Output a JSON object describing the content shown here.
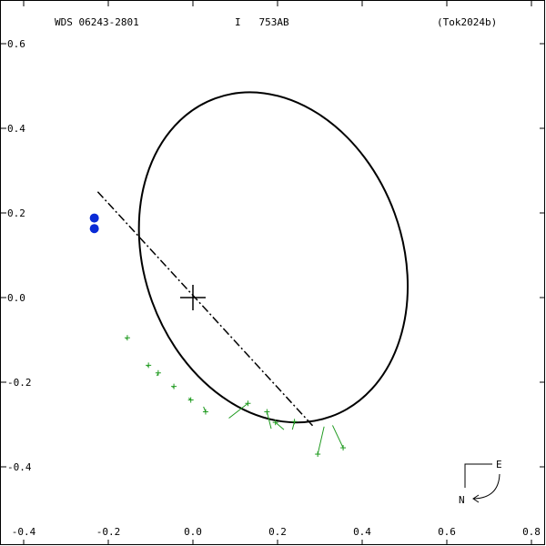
{
  "header": {
    "left": "WDS 06243-2801",
    "middle": "I   753AB",
    "right": "(Tok2024b)"
  },
  "compass": {
    "east": "E",
    "north": "N"
  },
  "chart_data": {
    "type": "scatter",
    "title": "",
    "xlabel": "",
    "ylabel": "",
    "xlim": [
      -0.4,
      0.8
    ],
    "ylim": [
      -0.5,
      0.6
    ],
    "x_ticks": [
      -0.4,
      -0.2,
      0.0,
      0.2,
      0.4,
      0.6,
      0.8
    ],
    "y_ticks": [
      0.6,
      0.4,
      0.2,
      0.0,
      -0.2,
      -0.4
    ],
    "x_tick_labels": [
      "-0.4",
      "-0.2",
      "0.0",
      "0.2",
      "0.4",
      "0.6",
      "0.8"
    ],
    "y_tick_labels": [
      "0.6",
      "0.4",
      "0.2",
      "0.0",
      "-0.2",
      "-0.4"
    ],
    "grid": false,
    "primary_star": {
      "x": 0.0,
      "y": 0.0
    },
    "orbit_ellipse": {
      "center": [
        0.19,
        0.095
      ],
      "semi_axes": [
        0.305,
        0.4
      ],
      "rotation_deg": -20
    },
    "line_of_nodes": {
      "from": [
        -0.225,
        0.25
      ],
      "to": [
        0.285,
        -0.305
      ]
    },
    "predicted_positions": [
      {
        "x": -0.233,
        "y": 0.188
      },
      {
        "x": -0.233,
        "y": 0.163
      }
    ],
    "observations": [
      {
        "x": -0.155,
        "y": -0.095,
        "fit_x": -0.158,
        "fit_y": -0.098
      },
      {
        "x": -0.105,
        "y": -0.16,
        "fit_x": -0.108,
        "fit_y": -0.163
      },
      {
        "x": -0.082,
        "y": -0.178,
        "fit_x": -0.085,
        "fit_y": -0.185
      },
      {
        "x": -0.045,
        "y": -0.21,
        "fit_x": -0.048,
        "fit_y": -0.213
      },
      {
        "x": -0.005,
        "y": -0.242,
        "fit_x": -0.01,
        "fit_y": -0.237
      },
      {
        "x": 0.03,
        "y": -0.27,
        "fit_x": 0.025,
        "fit_y": -0.258
      },
      {
        "x": 0.13,
        "y": -0.25,
        "fit_x": 0.085,
        "fit_y": -0.285
      },
      {
        "x": 0.175,
        "y": -0.27,
        "fit_x": 0.185,
        "fit_y": -0.31
      },
      {
        "x": 0.195,
        "y": -0.295,
        "fit_x": 0.215,
        "fit_y": -0.312
      },
      {
        "x": 0.24,
        "y": -0.293,
        "fit_x": 0.235,
        "fit_y": -0.312
      },
      {
        "x": 0.295,
        "y": -0.37,
        "fit_x": 0.31,
        "fit_y": -0.305
      },
      {
        "x": 0.355,
        "y": -0.355,
        "fit_x": 0.33,
        "fit_y": -0.302
      }
    ],
    "colors": {
      "orbit": "#000000",
      "predicted": "#0a2bd6",
      "observation": "#1f9a1f"
    }
  }
}
